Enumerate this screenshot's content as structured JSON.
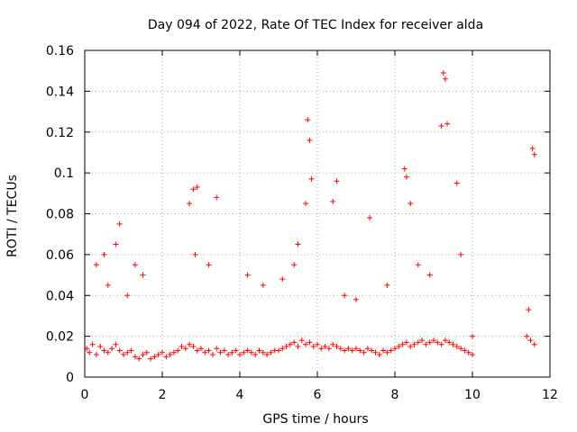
{
  "chart_data": {
    "type": "scatter",
    "title": "Day 094 of 2022, Rate Of TEC Index for receiver alda",
    "xlabel": "GPS time / hours",
    "ylabel": "ROTI / TECUs",
    "xlim": [
      0,
      12
    ],
    "ylim": [
      0,
      0.16
    ],
    "xticks": [
      0,
      2,
      4,
      6,
      8,
      10,
      12
    ],
    "yticks": [
      0,
      0.02,
      0.04,
      0.06,
      0.08,
      0.1,
      0.12,
      0.14,
      0.16
    ],
    "xtick_labels": [
      "0",
      "2",
      "4",
      "6",
      "8",
      "10",
      "12"
    ],
    "ytick_labels": [
      "0",
      "0.02",
      "0.04",
      "0.06",
      "0.08",
      "0.1",
      "0.12",
      "0.14",
      "0.16"
    ],
    "grid": true,
    "marker": "+",
    "color": "#ff0000",
    "series": [
      {
        "x": [
          0.05,
          0.12,
          0.2,
          0.3,
          0.4,
          0.5,
          0.6,
          0.7,
          0.8,
          0.9,
          1.0,
          1.1,
          1.2,
          1.3,
          1.4,
          1.5,
          1.6,
          1.7,
          1.8,
          1.9,
          2.0,
          2.1,
          2.2,
          2.3,
          2.4,
          2.5,
          2.6,
          2.7,
          2.8,
          2.9,
          3.0,
          3.1,
          3.2,
          3.3,
          3.4,
          3.5,
          3.6,
          3.7,
          3.8,
          3.9,
          4.0,
          4.1,
          4.2,
          4.3,
          4.4,
          4.5,
          4.6,
          4.7,
          4.8,
          4.9,
          5.0,
          5.1,
          5.2,
          5.3,
          5.4,
          5.5,
          5.6,
          5.7,
          5.8,
          5.9,
          6.0,
          6.1,
          6.2,
          6.3,
          6.4,
          6.5,
          6.6,
          6.7,
          6.8,
          6.9,
          7.0,
          7.1,
          7.2,
          7.3,
          7.4,
          7.5,
          7.6,
          7.7,
          7.8,
          7.9,
          8.0,
          8.1,
          8.2,
          8.3,
          8.4,
          8.5,
          8.6,
          8.7,
          8.8,
          8.9,
          9.0,
          9.1,
          9.2,
          9.3,
          9.4,
          9.5,
          9.6,
          9.7,
          9.8,
          9.9,
          10.0,
          11.4,
          11.5,
          11.6,
          0.3,
          0.5,
          0.8,
          0.9,
          1.3,
          1.5,
          2.7,
          2.8,
          2.9,
          3.4,
          5.5,
          5.7,
          5.75,
          5.8,
          5.85,
          6.4,
          6.5,
          7.35,
          8.25,
          8.3,
          8.4,
          9.2,
          9.25,
          9.3,
          9.35,
          9.6,
          9.7,
          11.6,
          11.55,
          0.6,
          1.1,
          2.85,
          3.2,
          4.2,
          4.6,
          5.1,
          5.4,
          6.7,
          7.0,
          7.8,
          8.6,
          8.9,
          10.0,
          11.45
        ],
        "y": [
          0.014,
          0.012,
          0.016,
          0.011,
          0.015,
          0.013,
          0.012,
          0.014,
          0.016,
          0.013,
          0.011,
          0.012,
          0.013,
          0.01,
          0.009,
          0.011,
          0.012,
          0.009,
          0.01,
          0.011,
          0.012,
          0.01,
          0.011,
          0.012,
          0.013,
          0.015,
          0.014,
          0.016,
          0.015,
          0.013,
          0.014,
          0.012,
          0.013,
          0.011,
          0.014,
          0.012,
          0.013,
          0.011,
          0.012,
          0.013,
          0.011,
          0.012,
          0.013,
          0.012,
          0.011,
          0.013,
          0.012,
          0.011,
          0.012,
          0.013,
          0.013,
          0.014,
          0.015,
          0.016,
          0.017,
          0.015,
          0.018,
          0.016,
          0.017,
          0.015,
          0.016,
          0.014,
          0.015,
          0.014,
          0.016,
          0.015,
          0.014,
          0.013,
          0.014,
          0.013,
          0.014,
          0.013,
          0.012,
          0.014,
          0.013,
          0.012,
          0.011,
          0.013,
          0.012,
          0.013,
          0.014,
          0.015,
          0.016,
          0.017,
          0.015,
          0.016,
          0.017,
          0.018,
          0.016,
          0.017,
          0.018,
          0.017,
          0.016,
          0.018,
          0.017,
          0.016,
          0.015,
          0.014,
          0.013,
          0.012,
          0.011,
          0.02,
          0.018,
          0.016,
          0.055,
          0.06,
          0.065,
          0.075,
          0.055,
          0.05,
          0.085,
          0.092,
          0.093,
          0.088,
          0.065,
          0.085,
          0.126,
          0.116,
          0.097,
          0.086,
          0.096,
          0.078,
          0.102,
          0.098,
          0.085,
          0.123,
          0.149,
          0.146,
          0.124,
          0.095,
          0.06,
          0.109,
          0.112,
          0.045,
          0.04,
          0.06,
          0.055,
          0.05,
          0.045,
          0.048,
          0.055,
          0.04,
          0.038,
          0.045,
          0.055,
          0.05,
          0.02,
          0.033
        ]
      }
    ]
  }
}
